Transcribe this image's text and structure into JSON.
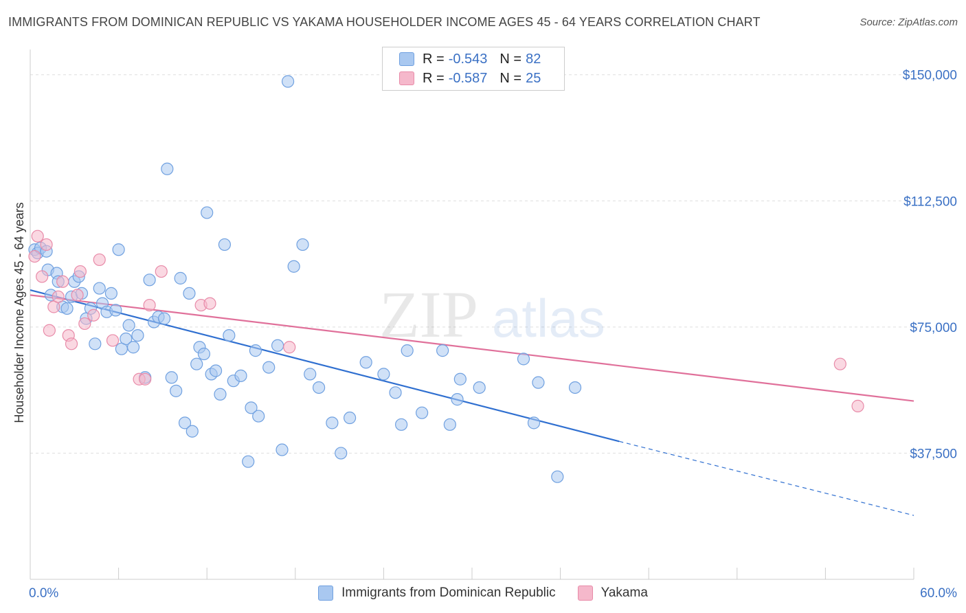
{
  "title": "IMMIGRANTS FROM DOMINICAN REPUBLIC VS YAKAMA HOUSEHOLDER INCOME AGES 45 - 64 YEARS CORRELATION CHART",
  "source": "Source: ZipAtlas.com",
  "watermark": {
    "zip": "ZIP",
    "atlas": "atlas"
  },
  "legend": [
    {
      "r_label": "R = ",
      "r_value": "-0.543",
      "n_label": "N = ",
      "n_value": "82",
      "color": "#a9c8f0"
    },
    {
      "r_label": "R = ",
      "r_value": "-0.587",
      "n_label": "N = ",
      "n_value": "25",
      "color": "#f5b8cb"
    }
  ],
  "chart_data": {
    "type": "scatter",
    "xlabel": "",
    "ylabel": "Householder Income Ages 45 - 64 years",
    "xlim": [
      0,
      60
    ],
    "ylim": [
      0,
      157500
    ],
    "x_tick_labels": [
      "0.0%",
      "60.0%"
    ],
    "y_ticks": [
      37500,
      75000,
      112500,
      150000
    ],
    "y_tick_labels": [
      "$37,500",
      "$75,000",
      "$112,500",
      "$150,000"
    ],
    "grid": true,
    "legend_position": "top-center",
    "series": [
      {
        "name": "Immigrants from Dominican Republic",
        "color": "#6fa0e0",
        "fill": "#a9c8f0",
        "trend": {
          "x": [
            0,
            40,
            60
          ],
          "y": [
            86000,
            41000,
            19000
          ],
          "solid_until": 40
        },
        "points": [
          [
            0.3,
            98000
          ],
          [
            0.5,
            97000
          ],
          [
            0.7,
            98500
          ],
          [
            1.1,
            97500
          ],
          [
            1.2,
            92000
          ],
          [
            1.4,
            84500
          ],
          [
            1.8,
            91000
          ],
          [
            1.9,
            88500
          ],
          [
            2.2,
            81000
          ],
          [
            2.5,
            80500
          ],
          [
            2.8,
            84000
          ],
          [
            3.0,
            88500
          ],
          [
            3.3,
            90000
          ],
          [
            3.5,
            85000
          ],
          [
            3.8,
            77500
          ],
          [
            4.1,
            80500
          ],
          [
            4.4,
            70000
          ],
          [
            4.7,
            86500
          ],
          [
            4.9,
            82000
          ],
          [
            5.2,
            79500
          ],
          [
            5.5,
            85000
          ],
          [
            5.8,
            80000
          ],
          [
            6.0,
            98000
          ],
          [
            6.2,
            68500
          ],
          [
            6.5,
            71500
          ],
          [
            6.7,
            75500
          ],
          [
            7.0,
            69000
          ],
          [
            7.3,
            72500
          ],
          [
            7.8,
            60000
          ],
          [
            8.1,
            89000
          ],
          [
            8.4,
            76500
          ],
          [
            8.7,
            78000
          ],
          [
            9.1,
            77500
          ],
          [
            9.3,
            122000
          ],
          [
            9.6,
            60000
          ],
          [
            9.9,
            56000
          ],
          [
            10.2,
            89500
          ],
          [
            10.5,
            46500
          ],
          [
            10.8,
            85000
          ],
          [
            11.0,
            44000
          ],
          [
            11.3,
            64000
          ],
          [
            11.5,
            69000
          ],
          [
            11.8,
            67000
          ],
          [
            12.0,
            109000
          ],
          [
            12.3,
            61000
          ],
          [
            12.6,
            62000
          ],
          [
            12.9,
            55000
          ],
          [
            13.2,
            99500
          ],
          [
            13.5,
            72500
          ],
          [
            13.8,
            59000
          ],
          [
            14.3,
            60500
          ],
          [
            14.8,
            35000
          ],
          [
            15.0,
            51000
          ],
          [
            15.3,
            68000
          ],
          [
            15.5,
            48500
          ],
          [
            16.2,
            63000
          ],
          [
            16.8,
            69500
          ],
          [
            17.1,
            38500
          ],
          [
            17.5,
            148000
          ],
          [
            17.9,
            93000
          ],
          [
            18.5,
            99500
          ],
          [
            19.0,
            61000
          ],
          [
            19.6,
            57000
          ],
          [
            20.5,
            46500
          ],
          [
            21.1,
            37500
          ],
          [
            21.7,
            48000
          ],
          [
            22.8,
            64500
          ],
          [
            24.0,
            61000
          ],
          [
            24.8,
            55500
          ],
          [
            25.2,
            46000
          ],
          [
            25.6,
            68000
          ],
          [
            26.6,
            49500
          ],
          [
            28.0,
            68000
          ],
          [
            28.5,
            46000
          ],
          [
            29.0,
            53500
          ],
          [
            29.2,
            59500
          ],
          [
            30.5,
            57000
          ],
          [
            33.5,
            65500
          ],
          [
            34.2,
            46500
          ],
          [
            34.5,
            58500
          ],
          [
            35.8,
            30500
          ],
          [
            37.0,
            57000
          ]
        ]
      },
      {
        "name": "Yakama",
        "color": "#e88aa8",
        "fill": "#f5b8cb",
        "trend": {
          "x": [
            0,
            60
          ],
          "y": [
            84500,
            53000
          ],
          "solid_until": 60
        },
        "points": [
          [
            0.3,
            96000
          ],
          [
            0.5,
            102000
          ],
          [
            0.8,
            90000
          ],
          [
            1.1,
            99500
          ],
          [
            1.3,
            74000
          ],
          [
            1.6,
            81000
          ],
          [
            1.9,
            84000
          ],
          [
            2.2,
            88500
          ],
          [
            2.6,
            72500
          ],
          [
            2.8,
            70000
          ],
          [
            3.2,
            84500
          ],
          [
            3.4,
            91500
          ],
          [
            3.7,
            76000
          ],
          [
            4.3,
            78500
          ],
          [
            4.7,
            95000
          ],
          [
            5.6,
            71000
          ],
          [
            7.4,
            59500
          ],
          [
            7.8,
            59500
          ],
          [
            8.1,
            81500
          ],
          [
            8.9,
            91500
          ],
          [
            11.6,
            81500
          ],
          [
            12.2,
            82000
          ],
          [
            17.6,
            69000
          ],
          [
            55.0,
            64000
          ],
          [
            56.2,
            51500
          ]
        ]
      }
    ]
  }
}
